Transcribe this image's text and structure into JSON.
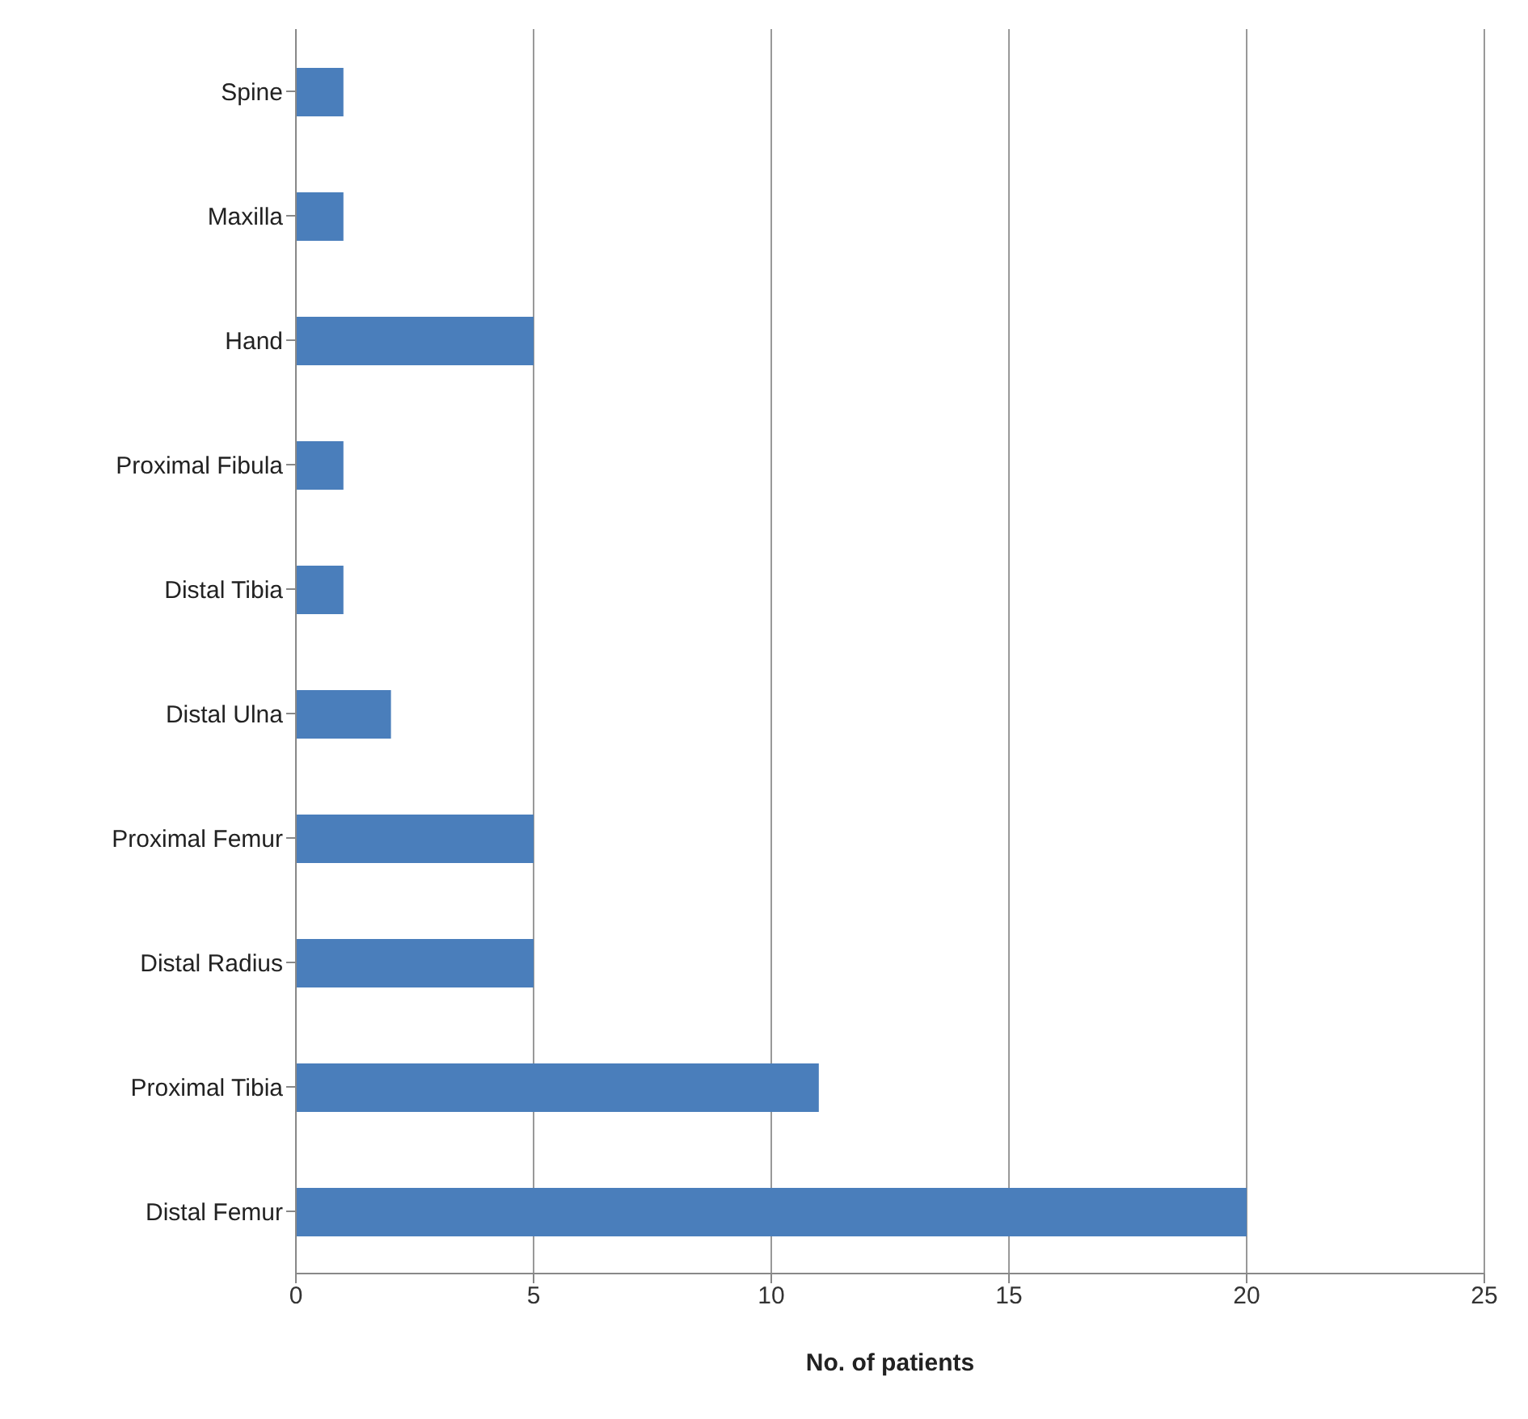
{
  "chart_data": {
    "type": "bar",
    "orientation": "horizontal",
    "xlabel": "No. of patients",
    "categories": [
      "Spine",
      "Maxilla",
      "Hand",
      "Proximal Fibula",
      "Distal Tibia",
      "Distal Ulna",
      "Proximal Femur",
      "Distal Radius",
      "Proximal Tibia",
      "Distal Femur"
    ],
    "values": [
      1,
      1,
      5,
      1,
      1,
      2,
      5,
      5,
      11,
      20
    ],
    "color": "#4a7ebb",
    "xlim": [
      0,
      25
    ],
    "xticks": [
      0,
      5,
      10,
      15,
      20,
      25
    ],
    "grid": "x",
    "legend": false
  }
}
